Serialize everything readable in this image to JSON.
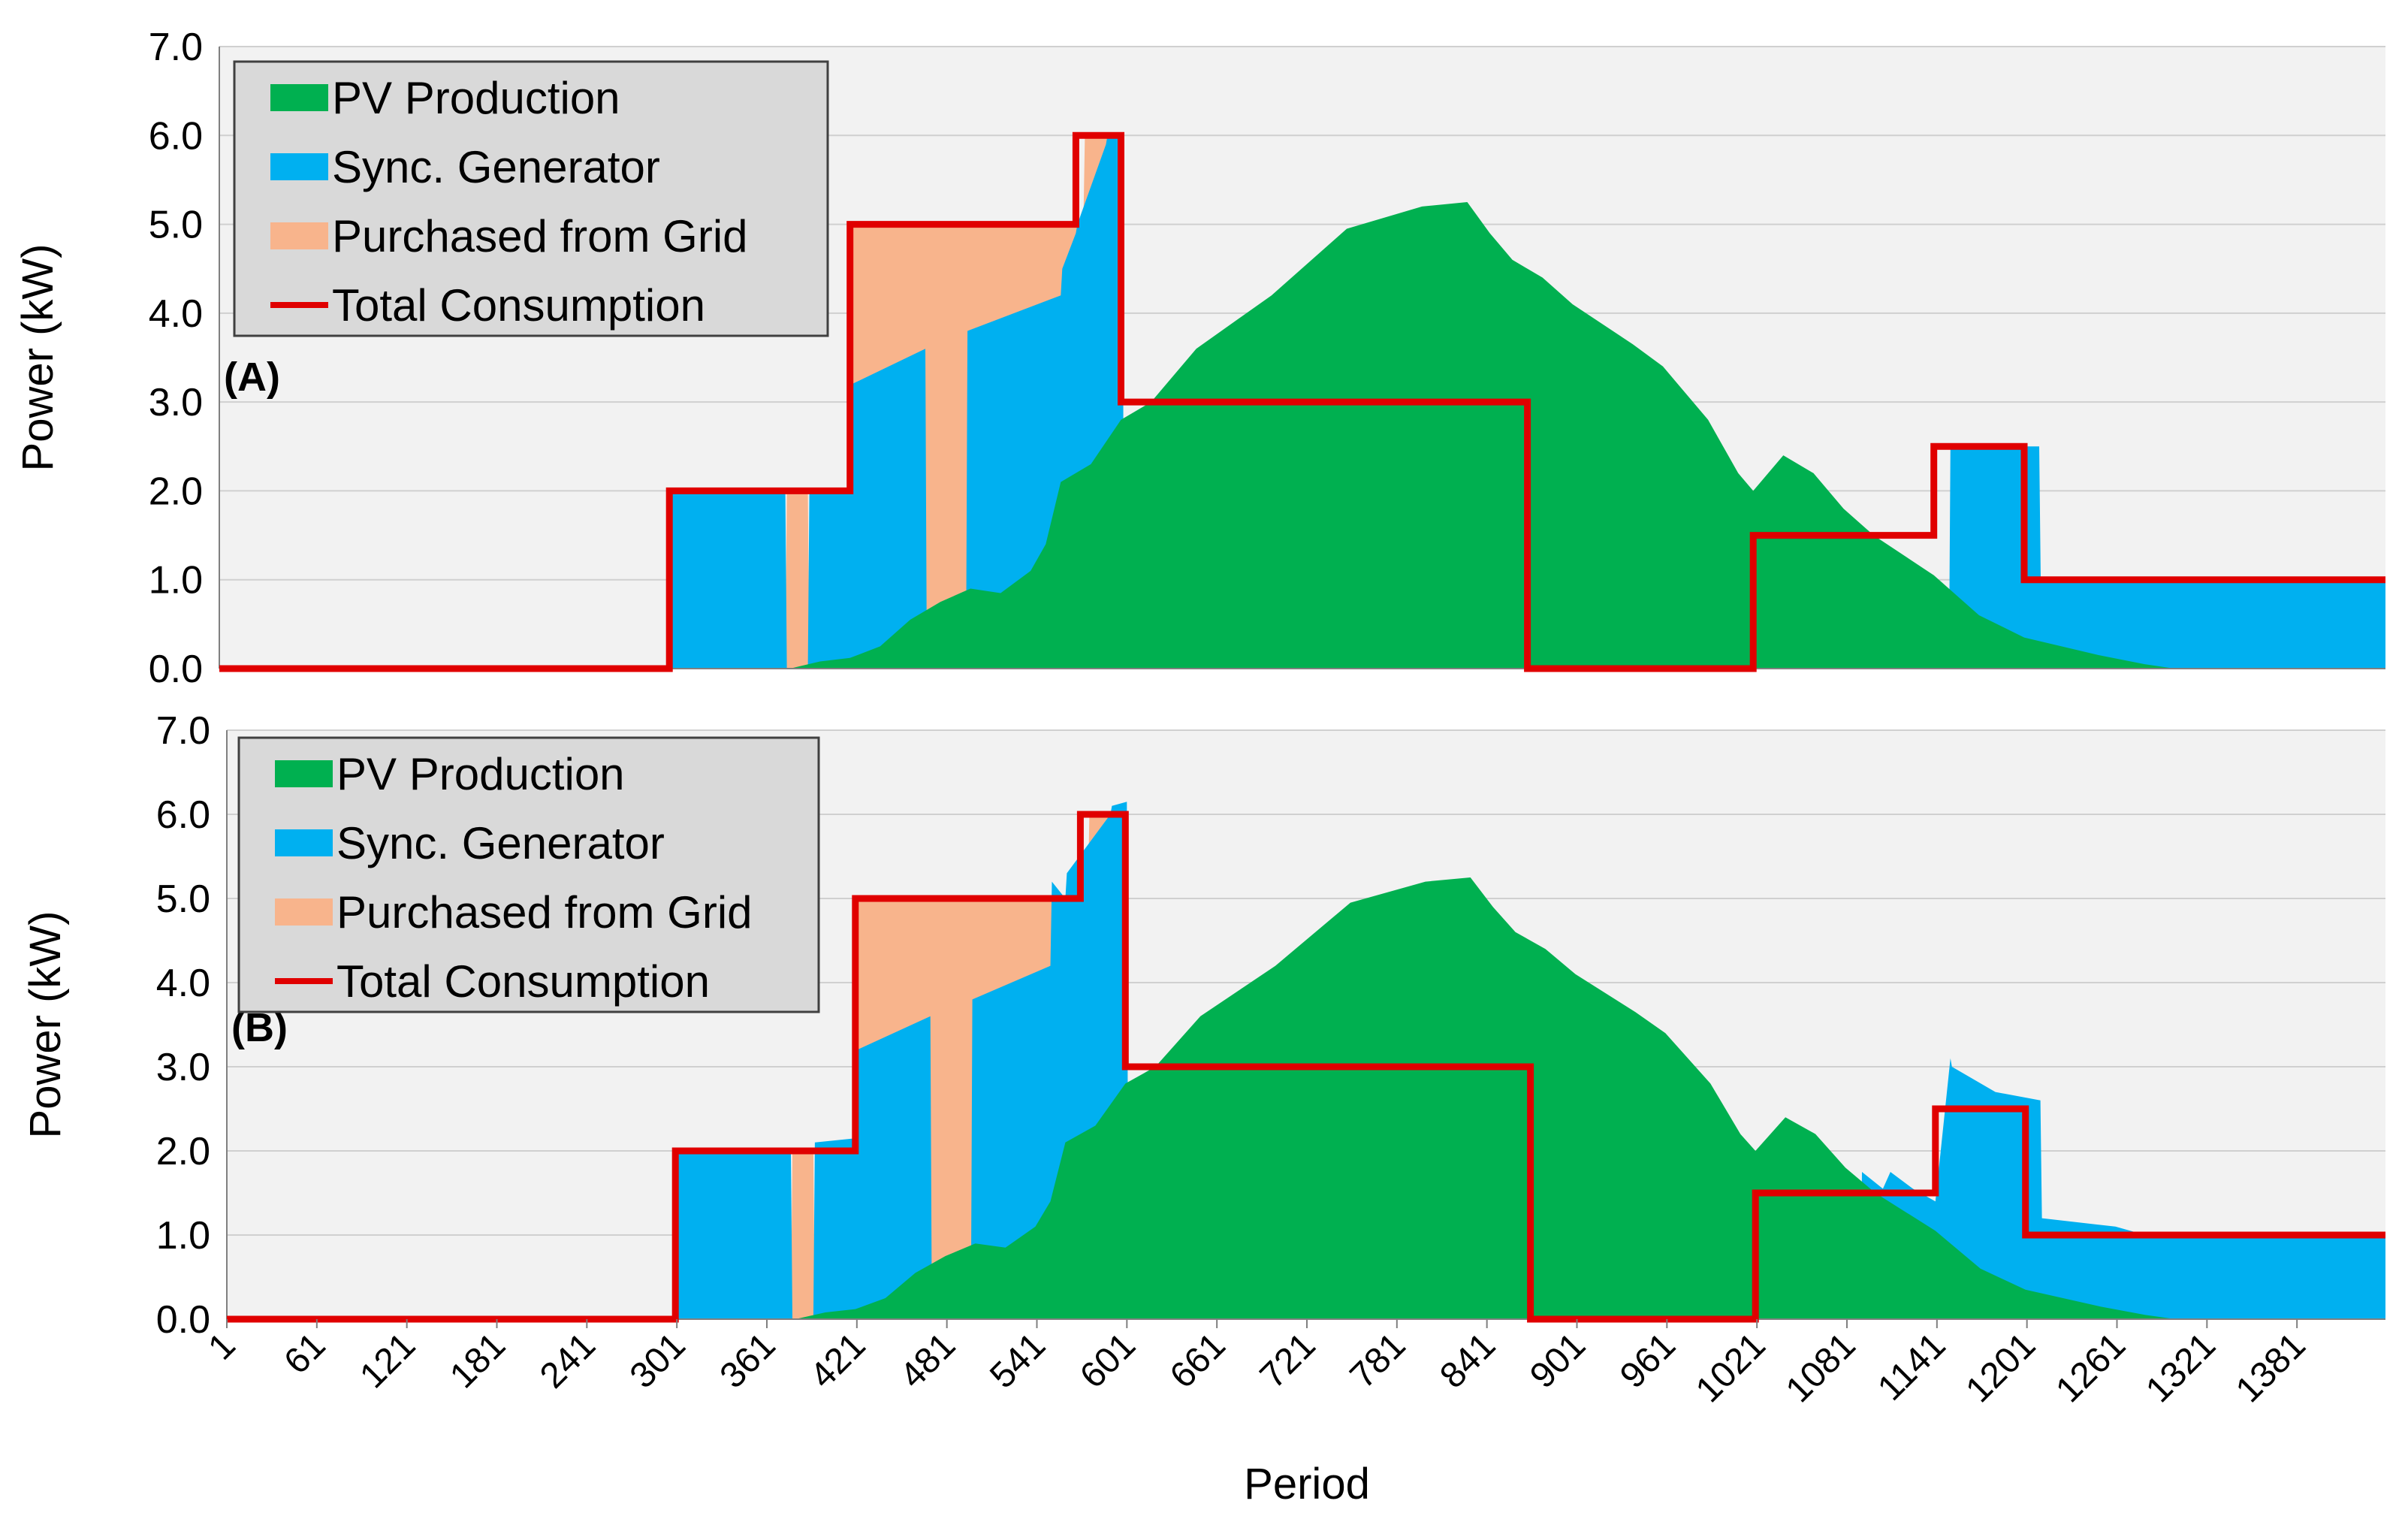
{
  "figure": {
    "xlabel": "Period",
    "x_ticks": [
      1,
      61,
      121,
      181,
      241,
      301,
      361,
      421,
      481,
      541,
      601,
      661,
      721,
      781,
      841,
      901,
      961,
      1021,
      1081,
      1141,
      1201,
      1261,
      1321,
      1381
    ],
    "colors": {
      "pv": "#00B050",
      "sync": "#00B0F0",
      "grid": "#F8B48C",
      "total": "#E00000",
      "plot_bg": "#F2F2F2",
      "legend_bg": "#D9D9D9"
    }
  },
  "chart_data": [
    {
      "type": "area",
      "panel_label": "(A)",
      "title": "",
      "xlabel": "Period",
      "ylabel": "Power (kW)",
      "xlim": [
        1,
        1440
      ],
      "ylim": [
        0,
        7
      ],
      "y_ticks": [
        "0.0",
        "1.0",
        "2.0",
        "3.0",
        "4.0",
        "5.0",
        "6.0",
        "7.0"
      ],
      "grid": "horizontal",
      "legend_position": "top-left",
      "legend": [
        "PV Production",
        "Sync. Generator",
        "Purchased from Grid",
        "Total Consumption"
      ],
      "series": [
        {
          "name": "PV Production",
          "kind": "area",
          "x": [
            1,
            380,
            400,
            420,
            440,
            460,
            480,
            500,
            520,
            540,
            550,
            560,
            580,
            600,
            620,
            650,
            700,
            750,
            800,
            830,
            845,
            860,
            880,
            900,
            940,
            960,
            990,
            1010,
            1020,
            1040,
            1060,
            1080,
            1100,
            1140,
            1170,
            1200,
            1250,
            1280,
            1300,
            1440
          ],
          "values": [
            0,
            0,
            0.08,
            0.12,
            0.25,
            0.55,
            0.75,
            0.9,
            0.85,
            1.1,
            1.4,
            2.1,
            2.3,
            2.8,
            3.0,
            3.6,
            4.2,
            4.95,
            5.2,
            5.25,
            4.9,
            4.6,
            4.4,
            4.1,
            3.65,
            3.4,
            2.8,
            2.2,
            2.0,
            2.4,
            2.2,
            1.8,
            1.5,
            1.05,
            0.6,
            0.35,
            0.15,
            0.05,
            0,
            0
          ]
        },
        {
          "name": "Sync. Generator",
          "kind": "area",
          "x": [
            1,
            300,
            301,
            377,
            378,
            392,
            393,
            420,
            421,
            470,
            471,
            497,
            498,
            560,
            561,
            570,
            571,
            590,
            591,
            601,
            602,
            1150,
            1151,
            1210,
            1211,
            1440
          ],
          "values": [
            0,
            0,
            2.0,
            2.0,
            0,
            0,
            2.0,
            2.0,
            3.2,
            3.6,
            0,
            0,
            3.8,
            4.2,
            4.5,
            4.9,
            5.0,
            5.9,
            6.0,
            6.0,
            0,
            0,
            2.5,
            2.5,
            1.0,
            1.0
          ]
        },
        {
          "name": "Purchased from Grid",
          "kind": "area",
          "x": [
            1,
            377,
            378,
            392,
            393,
            420,
            421,
            470,
            471,
            497,
            498,
            540,
            541,
            560,
            561,
            575,
            576,
            601,
            602,
            1440
          ],
          "values": [
            0,
            0,
            2.0,
            2.0,
            0,
            0,
            5.0,
            5.0,
            5.0,
            5.0,
            5.0,
            5.0,
            5.0,
            5.0,
            5.0,
            5.0,
            6.0,
            6.0,
            0,
            0
          ]
        },
        {
          "name": "Total Consumption",
          "kind": "line",
          "x": [
            1,
            300,
            300,
            420,
            420,
            570,
            570,
            600,
            600,
            870,
            870,
            1020,
            1020,
            1140,
            1140,
            1200,
            1200,
            1440
          ],
          "values": [
            0,
            0,
            2,
            2,
            5,
            5,
            6,
            6,
            3,
            3,
            0,
            0,
            1.5,
            1.5,
            2.5,
            2.5,
            1,
            1
          ]
        }
      ]
    },
    {
      "type": "area",
      "panel_label": "(B)",
      "title": "",
      "xlabel": "Period",
      "ylabel": "Power (kW)",
      "xlim": [
        1,
        1440
      ],
      "ylim": [
        0,
        7
      ],
      "y_ticks": [
        "0.0",
        "1.0",
        "2.0",
        "3.0",
        "4.0",
        "5.0",
        "6.0",
        "7.0"
      ],
      "grid": "horizontal",
      "legend_position": "top-left",
      "legend": [
        "PV Production",
        "Sync. Generator",
        "Purchased from Grid",
        "Total Consumption"
      ],
      "series": [
        {
          "name": "PV Production",
          "kind": "area",
          "x": [
            1,
            380,
            400,
            420,
            440,
            460,
            480,
            500,
            520,
            540,
            550,
            560,
            580,
            600,
            620,
            650,
            700,
            750,
            800,
            830,
            845,
            860,
            880,
            900,
            940,
            960,
            990,
            1010,
            1020,
            1040,
            1060,
            1080,
            1100,
            1140,
            1170,
            1200,
            1250,
            1280,
            1300,
            1440
          ],
          "values": [
            0,
            0,
            0.08,
            0.12,
            0.25,
            0.55,
            0.75,
            0.9,
            0.85,
            1.1,
            1.4,
            2.1,
            2.3,
            2.8,
            3.0,
            3.6,
            4.2,
            4.95,
            5.2,
            5.25,
            4.9,
            4.6,
            4.4,
            4.1,
            3.65,
            3.4,
            2.8,
            2.2,
            2.0,
            2.4,
            2.2,
            1.8,
            1.5,
            1.05,
            0.6,
            0.35,
            0.15,
            0.05,
            0,
            0
          ]
        },
        {
          "name": "Sync. Generator",
          "kind": "area",
          "x": [
            1,
            300,
            301,
            377,
            378,
            392,
            393,
            420,
            421,
            470,
            471,
            497,
            498,
            550,
            551,
            560,
            561,
            590,
            591,
            601,
            602,
            1090,
            1091,
            1105,
            1110,
            1125,
            1140,
            1150,
            1151,
            1180,
            1210,
            1211,
            1260,
            1280,
            1440
          ],
          "values": [
            0,
            0,
            2.0,
            2.0,
            0,
            0,
            2.1,
            2.15,
            3.2,
            3.6,
            0,
            0,
            3.8,
            4.2,
            5.2,
            5.0,
            5.3,
            6.0,
            6.1,
            6.15,
            0,
            0,
            1.75,
            1.55,
            1.75,
            1.55,
            1.4,
            3.1,
            3.0,
            2.7,
            2.6,
            1.2,
            1.1,
            1.0,
            1.0
          ]
        },
        {
          "name": "Purchased from Grid",
          "kind": "area",
          "x": [
            1,
            377,
            378,
            392,
            393,
            420,
            421,
            470,
            471,
            497,
            498,
            540,
            541,
            560,
            561,
            575,
            576,
            601,
            602,
            1440
          ],
          "values": [
            0,
            0,
            2.0,
            2.0,
            0,
            0,
            5.0,
            5.0,
            5.0,
            5.0,
            5.0,
            5.0,
            5.0,
            5.0,
            5.0,
            5.0,
            6.0,
            6.0,
            0,
            0
          ]
        },
        {
          "name": "Total Consumption",
          "kind": "line",
          "x": [
            1,
            300,
            300,
            420,
            420,
            570,
            570,
            600,
            600,
            870,
            870,
            1020,
            1020,
            1140,
            1140,
            1200,
            1200,
            1440
          ],
          "values": [
            0,
            0,
            2,
            2,
            5,
            5,
            6,
            6,
            3,
            3,
            0,
            0,
            1.5,
            1.5,
            2.5,
            2.5,
            1,
            1
          ]
        }
      ]
    }
  ]
}
